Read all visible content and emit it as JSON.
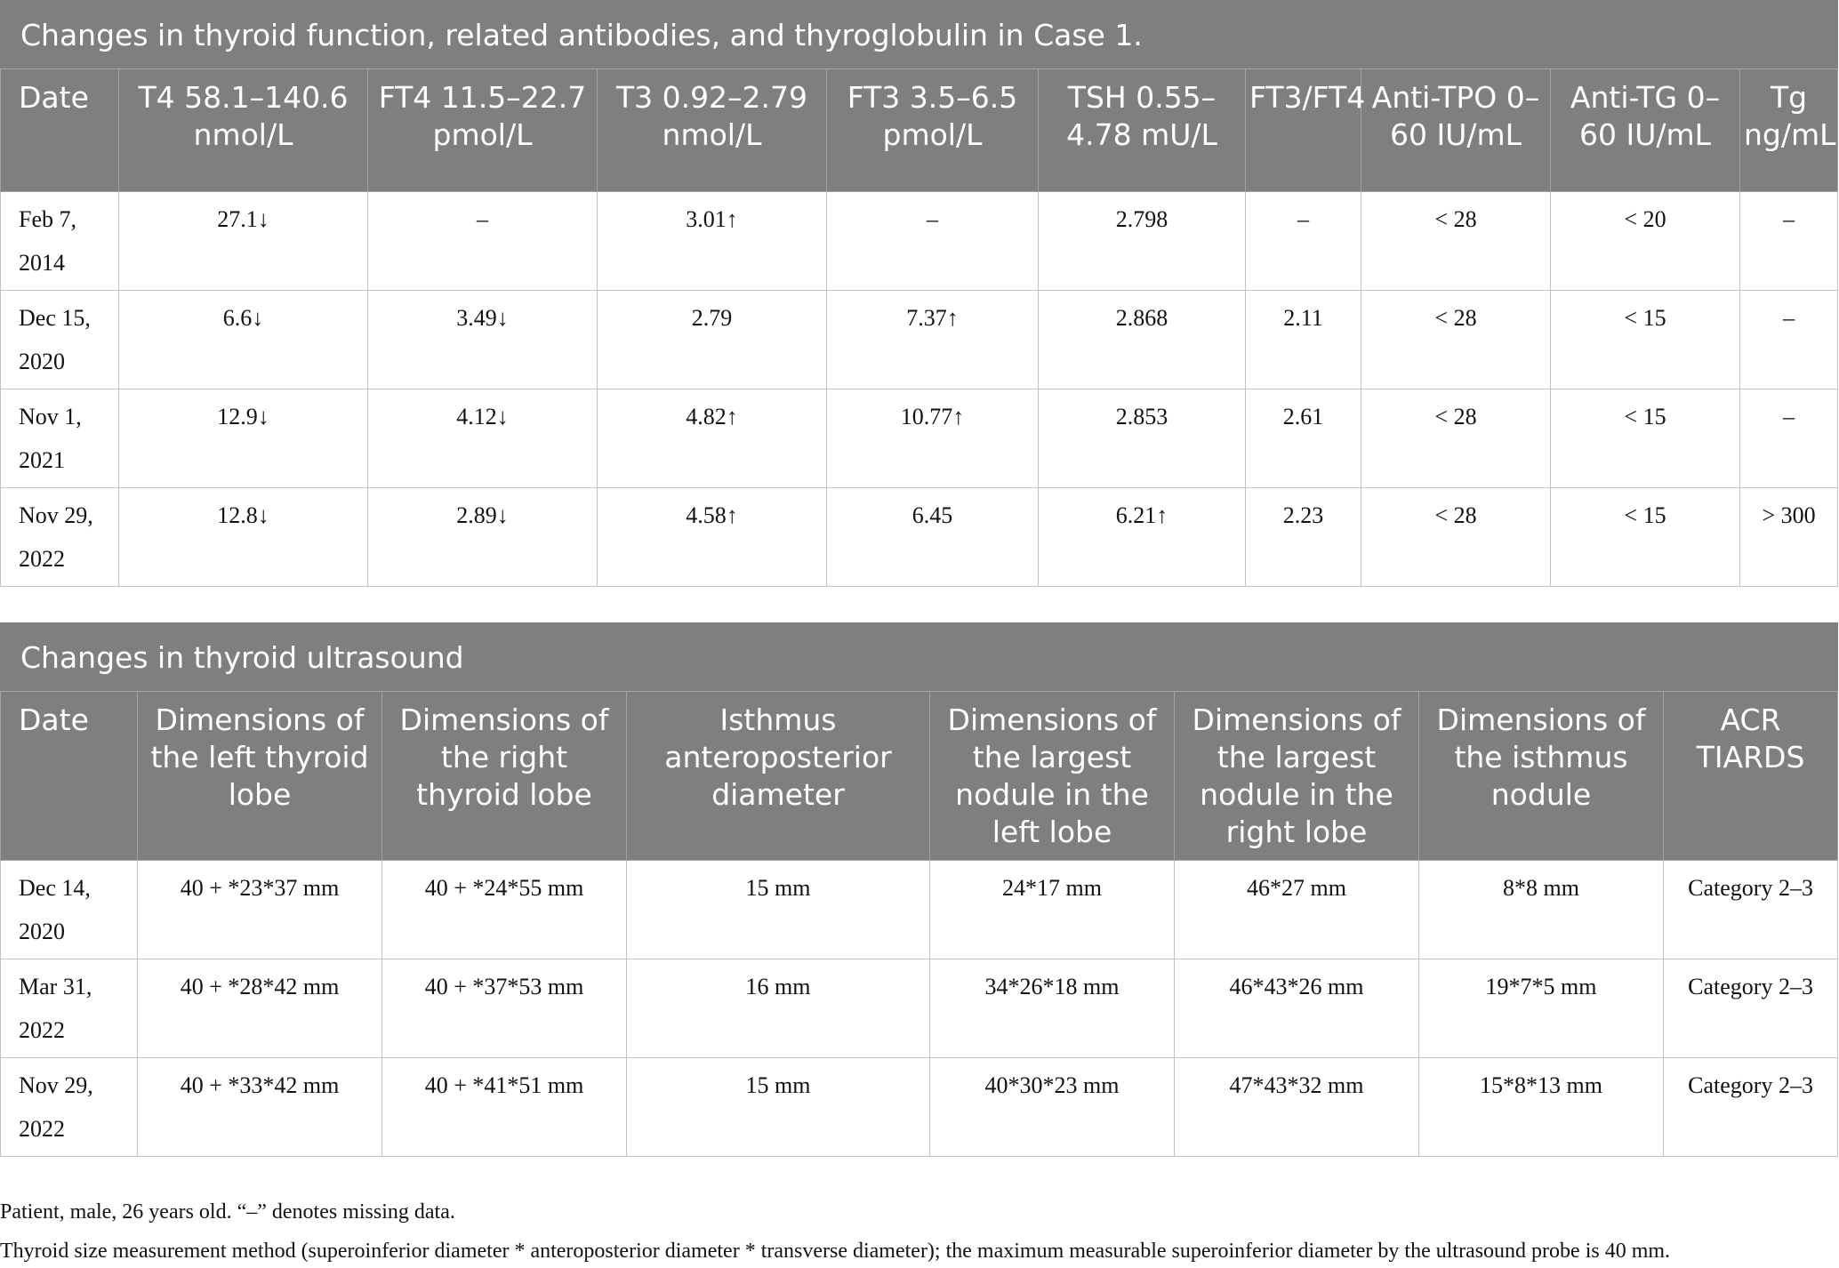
{
  "table1": {
    "caption": "Changes in thyroid function, related antibodies, and thyroglobulin in Case 1.",
    "headers": [
      "Date",
      "T4 58.1–140.6 nmol/L",
      "FT4 11.5–22.7 pmol/L",
      "T3 0.92–2.79 nmol/L",
      "FT3 3.5–6.5 pmol/L",
      "TSH 0.55–4.78 mU/L",
      "FT3/FT4",
      "Anti-TPO 0–60 IU/mL",
      "Anti-TG 0–60 IU/mL",
      "Tg ng/mL"
    ],
    "rows": [
      [
        "Feb 7, 2014",
        "27.1↓",
        "–",
        "3.01↑",
        "–",
        "2.798",
        "–",
        "< 28",
        "< 20",
        "–"
      ],
      [
        "Dec 15, 2020",
        "6.6↓",
        "3.49↓",
        "2.79",
        "7.37↑",
        "2.868",
        "2.11",
        "< 28",
        "< 15",
        "–"
      ],
      [
        "Nov 1, 2021",
        "12.9↓",
        "4.12↓",
        "4.82↑",
        "10.77↑",
        "2.853",
        "2.61",
        "< 28",
        "< 15",
        "–"
      ],
      [
        "Nov 29, 2022",
        "12.8↓",
        "2.89↓",
        "4.58↑",
        "6.45",
        "6.21↑",
        "2.23",
        "< 28",
        "< 15",
        "> 300"
      ]
    ]
  },
  "table2": {
    "caption": "Changes in thyroid ultrasound",
    "headers": [
      "Date",
      "Dimensions of the left thyroid lobe",
      "Dimensions of the right thyroid lobe",
      "Isthmus anteroposterior diameter",
      "Dimensions of the largest nodule in the left lobe",
      "Dimensions of the largest nodule in the right lobe",
      "Dimensions of the isthmus nodule",
      "ACR TIARDS"
    ],
    "rows": [
      [
        "Dec 14, 2020",
        "40 + *23*37 mm",
        "40 + *24*55 mm",
        "15 mm",
        "24*17 mm",
        "46*27 mm",
        "8*8 mm",
        "Category 2–3"
      ],
      [
        "Mar 31, 2022",
        "40 + *28*42 mm",
        "40 + *37*53 mm",
        "16 mm",
        "34*26*18 mm",
        "46*43*26 mm",
        "19*7*5 mm",
        "Category 2–3"
      ],
      [
        "Nov 29, 2022",
        "40 + *33*42 mm",
        "40 + *41*51 mm",
        "15 mm",
        "40*30*23 mm",
        "47*43*32 mm",
        "15*8*13 mm",
        "Category 2–3"
      ]
    ]
  },
  "footnotes": [
    "Patient, male, 26 years old. “–” denotes missing data.",
    "Thyroid size measurement method (superoinferior diameter * anteroposterior diameter * transverse diameter); the maximum measurable superoinferior diameter by the ultrasound probe is 40 mm."
  ]
}
